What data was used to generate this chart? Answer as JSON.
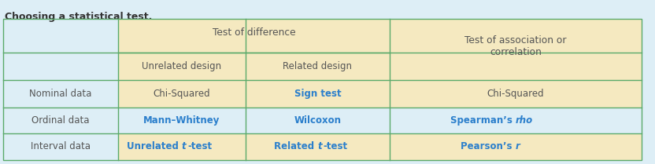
{
  "title": "Choosing a statistical test.",
  "bg_color": "#ddeef6",
  "header_bg": "#f5e9c0",
  "row_bg_light": "#ddeef6",
  "border_color": "#5aaa6a",
  "header_text_color": "#555555",
  "blue_text_color": "#2b7fcc",
  "dark_text_color": "#555555",
  "row_labels": [
    "Nominal data",
    "Ordinal data",
    "Interval data"
  ],
  "col_header1": "Test of difference",
  "col_header2": "Test of association or\ncorrelation",
  "col_header3": "Unrelated design",
  "col_header4": "Related design",
  "cells": [
    [
      "Chi-Squared",
      "Sign test",
      "Chi-Squared"
    ],
    [
      "Mann–Whitney",
      "Wilcoxon",
      "Spearman’s rho"
    ],
    [
      "Unrelated t-test",
      "Related t-test",
      "Pearson’s r"
    ]
  ],
  "cell_colors": [
    [
      "dark",
      "blue",
      "dark"
    ],
    [
      "blue",
      "blue",
      "blue"
    ],
    [
      "blue",
      "blue",
      "blue"
    ]
  ],
  "figw": 8.32,
  "figh": 2.09,
  "dpi": 100
}
